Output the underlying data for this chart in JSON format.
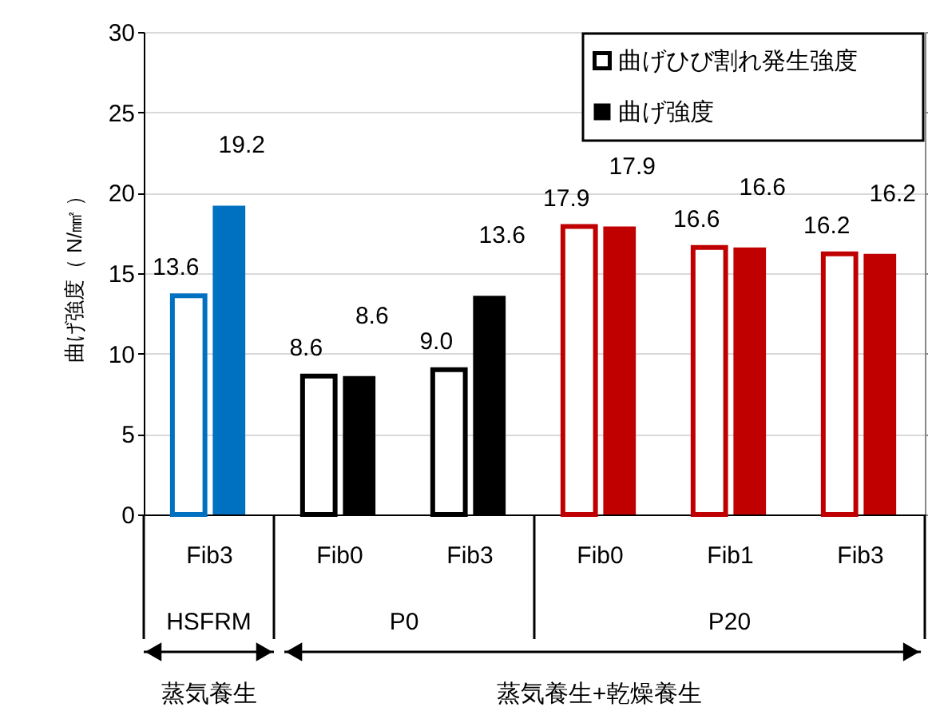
{
  "chart_data": {
    "type": "bar",
    "categories": [
      "Fib3",
      "Fib0",
      "Fib3",
      "Fib0",
      "Fib1",
      "Fib3"
    ],
    "series": [
      {
        "name": "曲げひび割れ発生強度",
        "color": "#000000",
        "colors": [
          "#0070c0",
          "#000000",
          "#000000",
          "#c00000",
          "#c00000",
          "#c00000"
        ],
        "values": [
          13.6,
          8.6,
          9.0,
          17.9,
          16.6,
          16.2
        ],
        "value_labels": [
          "13.6",
          "8.6",
          "9.0",
          "17.9",
          "16.6",
          "16.2"
        ]
      },
      {
        "name": "曲げ強度",
        "color": "#000000",
        "colors": [
          "#0070c0",
          "#000000",
          "#000000",
          "#c00000",
          "#c00000",
          "#c00000"
        ],
        "values": [
          19.2,
          8.6,
          13.6,
          17.9,
          16.6,
          16.2
        ],
        "value_labels": [
          "19.2",
          "8.6",
          "13.6",
          "17.9",
          "16.6",
          "16.2"
        ]
      }
    ],
    "ylabel": "曲げ強度（ N/㎟ ）",
    "ylim": [
      0,
      30
    ],
    "yticks": [
      0,
      5,
      10,
      15,
      20,
      25,
      30
    ],
    "grid": "y",
    "legend": "top right",
    "annotations": [
      "HSFRM",
      "P0",
      "P20",
      "蒸気養生",
      "蒸気養生+乾燥養生"
    ]
  }
}
